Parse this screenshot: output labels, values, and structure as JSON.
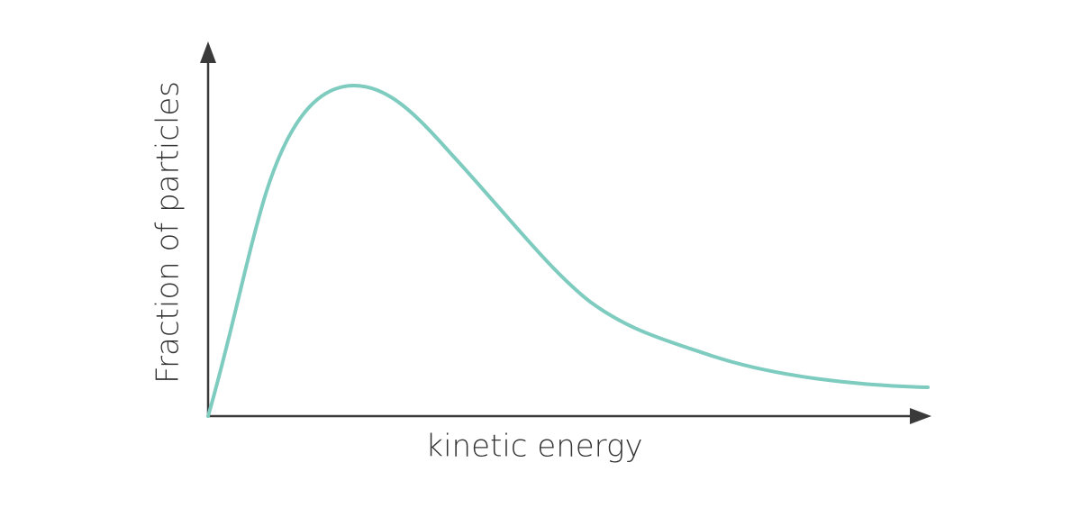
{
  "diagram": {
    "y_axis_label": "Fraction of particles",
    "x_axis_label": "kinetic energy"
  }
}
